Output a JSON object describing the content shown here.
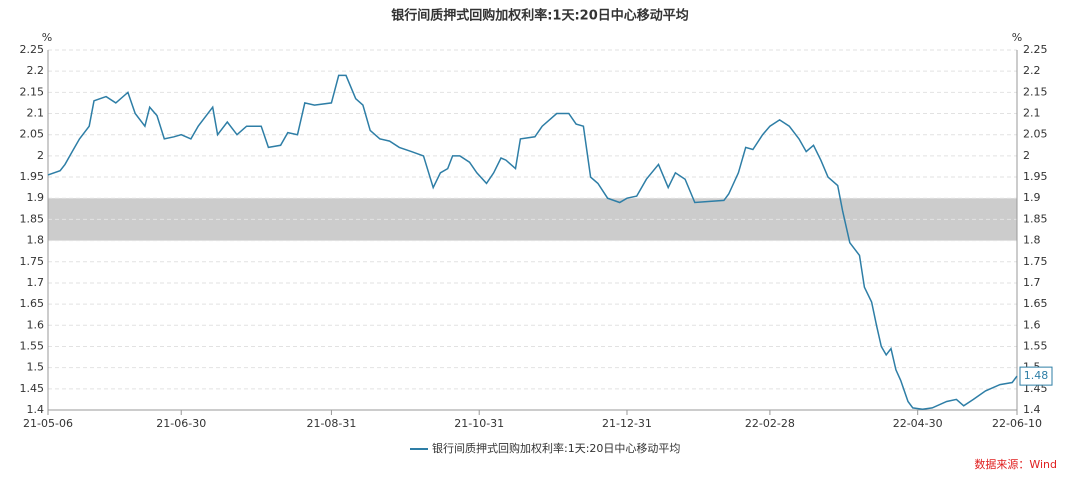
{
  "chart_data": {
    "type": "line",
    "title": "银行间质押式回购加权利率:1天:20日中心移动平均",
    "y_unit": "%",
    "y2_unit": "%",
    "source": "数据来源：Wind",
    "x": [
      "21-05-06",
      "21-05-11",
      "21-05-13",
      "21-05-16",
      "21-05-19",
      "21-05-23",
      "21-05-25",
      "21-05-30",
      "21-06-03",
      "21-06-08",
      "21-06-11",
      "21-06-15",
      "21-06-17",
      "21-06-20",
      "21-06-23",
      "21-06-27",
      "21-06-30",
      "21-07-04",
      "21-07-07",
      "21-07-13",
      "21-07-15",
      "21-07-19",
      "21-07-23",
      "21-07-27",
      "21-08-02",
      "21-08-05",
      "21-08-10",
      "21-08-13",
      "21-08-17",
      "21-08-20",
      "21-08-24",
      "21-08-31",
      "21-09-03",
      "21-09-06",
      "21-09-10",
      "21-09-13",
      "21-09-16",
      "21-09-20",
      "21-09-24",
      "21-09-28",
      "21-10-03",
      "21-10-08",
      "21-10-12",
      "21-10-15",
      "21-10-18",
      "21-10-20",
      "21-10-23",
      "21-10-27",
      "21-10-30",
      "21-11-03",
      "21-11-06",
      "21-11-09",
      "21-11-11",
      "21-11-15",
      "21-11-17",
      "21-11-23",
      "21-11-26",
      "21-12-02",
      "21-12-07",
      "21-12-10",
      "21-12-13",
      "21-12-16",
      "21-12-19",
      "21-12-23",
      "21-12-28",
      "21-12-31",
      "22-01-04",
      "22-01-08",
      "22-01-13",
      "22-01-17",
      "22-01-20",
      "22-01-24",
      "22-01-28",
      "22-02-04",
      "22-02-09",
      "22-02-11",
      "22-02-15",
      "22-02-18",
      "22-02-21",
      "22-02-25",
      "22-02-28",
      "22-03-04",
      "22-03-08",
      "22-03-12",
      "22-03-15",
      "22-03-18",
      "22-03-21",
      "22-03-24",
      "22-03-28",
      "22-03-30",
      "22-04-02",
      "22-04-06",
      "22-04-08",
      "22-04-11",
      "22-04-13",
      "22-04-15",
      "22-04-17",
      "22-04-19",
      "22-04-21",
      "22-04-23",
      "22-04-26",
      "22-04-28",
      "22-05-02",
      "22-05-06",
      "22-05-12",
      "22-05-16",
      "22-05-19",
      "22-05-23",
      "22-05-28",
      "22-06-03",
      "22-06-08",
      "22-06-10"
    ],
    "series": [
      {
        "name": "银行间质押式回购加权利率:1天:20日中心移动平均",
        "color": "#2e7ea6",
        "values": [
          1.955,
          1.965,
          1.98,
          2.01,
          2.04,
          2.07,
          2.13,
          2.14,
          2.125,
          2.15,
          2.1,
          2.07,
          2.115,
          2.095,
          2.04,
          2.045,
          2.05,
          2.04,
          2.07,
          2.115,
          2.05,
          2.08,
          2.05,
          2.07,
          2.07,
          2.02,
          2.025,
          2.055,
          2.05,
          2.125,
          2.12,
          2.125,
          2.19,
          2.19,
          2.135,
          2.12,
          2.06,
          2.04,
          2.035,
          2.02,
          2.01,
          2.0,
          1.925,
          1.96,
          1.97,
          2.0,
          2.0,
          1.985,
          1.96,
          1.935,
          1.96,
          1.995,
          1.99,
          1.97,
          2.04,
          2.045,
          2.07,
          2.1,
          2.1,
          2.075,
          2.07,
          1.95,
          1.935,
          1.9,
          1.89,
          1.9,
          1.905,
          1.945,
          1.98,
          1.925,
          1.96,
          1.945,
          1.89,
          1.893,
          1.895,
          1.91,
          1.96,
          2.02,
          2.015,
          2.05,
          2.07,
          2.085,
          2.07,
          2.04,
          2.01,
          2.025,
          1.99,
          1.95,
          1.93,
          1.87,
          1.795,
          1.765,
          1.69,
          1.655,
          1.6,
          1.55,
          1.53,
          1.545,
          1.495,
          1.47,
          1.42,
          1.405,
          1.402,
          1.405,
          1.42,
          1.425,
          1.41,
          1.425,
          1.445,
          1.46,
          1.465,
          1.48
        ],
        "value_labels": {
          "111": "1.48"
        }
      }
    ],
    "xlim": [
      "21-05-06",
      "22-06-10"
    ],
    "xticks": [
      "21-05-06",
      "21-06-30",
      "21-08-31",
      "21-10-31",
      "21-12-31",
      "22-02-28",
      "22-04-30",
      "22-06-10"
    ],
    "ylim": [
      1.4,
      2.25
    ],
    "yticks": [
      1.4,
      1.45,
      1.5,
      1.55,
      1.6,
      1.65,
      1.7,
      1.75,
      1.8,
      1.85,
      1.9,
      1.95,
      2,
      2.05,
      2.1,
      2.15,
      2.2,
      2.25
    ],
    "band": [
      1.8,
      1.9
    ],
    "band_color": "#cccccc",
    "grid": true,
    "legend": "bottom"
  }
}
